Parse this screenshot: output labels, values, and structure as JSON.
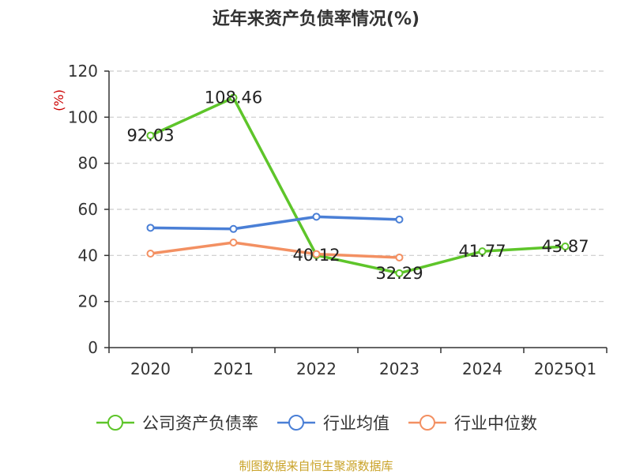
{
  "chart_data": {
    "type": "line",
    "title": "近年来资产负债率情况(%)",
    "ylabel": "(%)",
    "xlabel": "",
    "categories": [
      "2020",
      "2021",
      "2022",
      "2023",
      "2024",
      "2025Q1"
    ],
    "ylim": [
      0,
      120
    ],
    "yticks": [
      0,
      20,
      40,
      60,
      80,
      100,
      120
    ],
    "grid": true,
    "legend_position": "bottom",
    "series": [
      {
        "name": "公司资产负债率",
        "color": "#5ec52a",
        "values": [
          92.03,
          108.46,
          40.12,
          32.29,
          41.77,
          43.87
        ],
        "show_labels": true
      },
      {
        "name": "行业均值",
        "color": "#4a7fd6",
        "values": [
          52.0,
          51.5,
          56.8,
          55.6,
          null,
          null
        ],
        "show_labels": false
      },
      {
        "name": "行业中位数",
        "color": "#f39062",
        "values": [
          40.8,
          45.6,
          40.6,
          39.1,
          null,
          null
        ],
        "show_labels": false
      }
    ]
  },
  "source": "制图数据来自恒生聚源数据库",
  "colors": {
    "axis": "#333333",
    "grid": "#cccccc",
    "ylabel": "#cc0000",
    "source": "#c9a227"
  }
}
